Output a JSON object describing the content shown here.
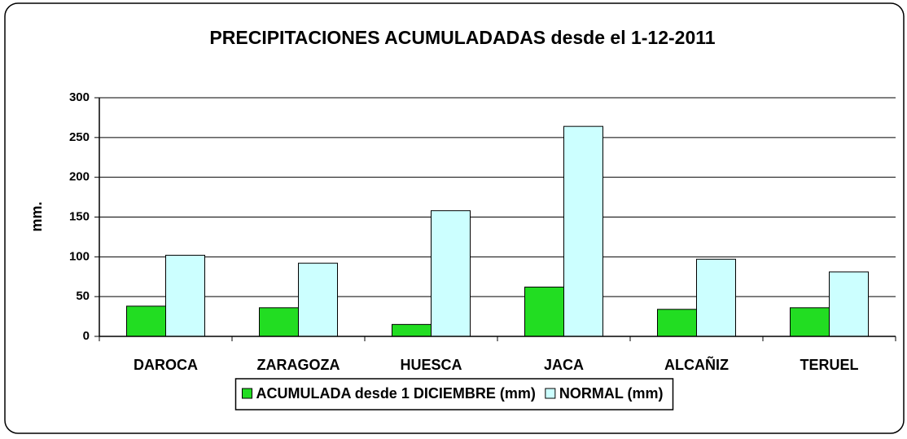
{
  "chart_data": {
    "type": "bar",
    "title": "PRECIPITACIONES ACUMULADADAS desde el 1-12-2011",
    "y_label": "mm.",
    "categories": [
      "DAROCA",
      "ZARAGOZA",
      "HUESCA",
      "JACA",
      "ALCAÑIZ",
      "TERUEL"
    ],
    "series": [
      {
        "name": "ACUMULADA desde 1 DICIEMBRE (mm)",
        "color": "#22dd22",
        "values": [
          38,
          36,
          15,
          62,
          34,
          36
        ]
      },
      {
        "name": "NORMAL (mm)",
        "color": "#ccffff",
        "values": [
          102,
          92,
          158,
          264,
          97,
          81
        ]
      }
    ],
    "ylim": [
      0,
      300
    ],
    "yticks": [
      0,
      50,
      100,
      150,
      200,
      250,
      300
    ],
    "grid": true,
    "legend": "bottom"
  }
}
